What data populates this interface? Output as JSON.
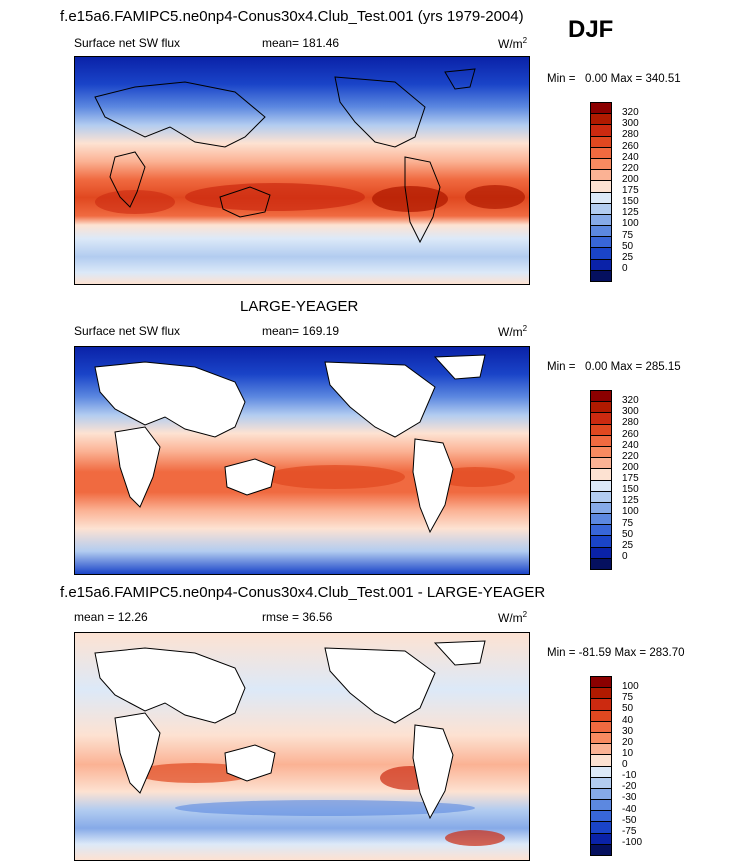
{
  "season": "DJF",
  "panels": [
    {
      "title": "f.e15a6.FAMIPC5.ne0np4-Conus30x4.Club_Test.001 (yrs 1979-2004)",
      "left_label": "Surface net SW flux",
      "mid_label": "mean= 181.46",
      "units": "W/m",
      "units_sup": "2",
      "min_label": "Min =",
      "min_value": "0.00",
      "max_label": "Max =",
      "max_value": "340.51",
      "style": "model"
    },
    {
      "title": "LARGE-YEAGER",
      "left_label": "Surface net SW flux",
      "mid_label": "mean= 169.19",
      "units": "W/m",
      "units_sup": "2",
      "min_label": "Min =",
      "min_value": "0.00",
      "max_label": "Max =",
      "max_value": "285.15",
      "style": "obs"
    },
    {
      "title": "f.e15a6.FAMIPC5.ne0np4-Conus30x4.Club_Test.001 - LARGE-YEAGER",
      "left_label": "mean =  12.26",
      "mid_label": "rmse =  36.56",
      "units": "W/m",
      "units_sup": "2",
      "min_label": "Min =",
      "min_value": "-81.59",
      "max_label": "Max =",
      "max_value": "283.70",
      "style": "diff"
    }
  ],
  "colorbars": {
    "absolute": {
      "labels": [
        "320",
        "300",
        "280",
        "260",
        "240",
        "220",
        "200",
        "175",
        "150",
        "125",
        "100",
        "75",
        "50",
        "25",
        "0"
      ],
      "colors": [
        "#8b0000",
        "#b01a00",
        "#cc2a10",
        "#e04820",
        "#f06a40",
        "#f88a60",
        "#fbb294",
        "#fde2d2",
        "#dce9f8",
        "#b2ccf0",
        "#86aae8",
        "#5c88e0",
        "#3866d8",
        "#1a44c8",
        "#0a22a8",
        "#05105f"
      ]
    },
    "difference": {
      "labels": [
        "100",
        "75",
        "50",
        "40",
        "30",
        "20",
        "10",
        "0",
        "-10",
        "-20",
        "-30",
        "-40",
        "-50",
        "-75",
        "-100"
      ],
      "colors": [
        "#8b0000",
        "#b01a00",
        "#cc2a10",
        "#e04820",
        "#f06a40",
        "#f88a60",
        "#fbb294",
        "#fde2d2",
        "#dce9f8",
        "#b2ccf0",
        "#86aae8",
        "#5c88e0",
        "#3866d8",
        "#1a44c8",
        "#0a22a8",
        "#05105f"
      ]
    }
  },
  "chart_data": [
    {
      "type": "heatmap",
      "title": "f.e15a6.FAMIPC5.ne0np4-Conus30x4.Club_Test.001 (yrs 1979-2004)",
      "variable": "Surface net SW flux",
      "units": "W/m2",
      "season": "DJF",
      "mean": 181.46,
      "min": 0.0,
      "max": 340.51,
      "levels": [
        0,
        25,
        50,
        75,
        100,
        125,
        150,
        175,
        200,
        220,
        240,
        260,
        280,
        300,
        320
      ]
    },
    {
      "type": "heatmap",
      "title": "LARGE-YEAGER",
      "variable": "Surface net SW flux",
      "units": "W/m2",
      "mean": 169.19,
      "min": 0.0,
      "max": 285.15,
      "levels": [
        0,
        25,
        50,
        75,
        100,
        125,
        150,
        175,
        200,
        220,
        240,
        260,
        280,
        300,
        320
      ]
    },
    {
      "type": "heatmap",
      "title": "f.e15a6.FAMIPC5.ne0np4-Conus30x4.Club_Test.001 - LARGE-YEAGER",
      "units": "W/m2",
      "mean": 12.26,
      "rmse": 36.56,
      "min": -81.59,
      "max": 283.7,
      "levels": [
        -100,
        -75,
        -50,
        -40,
        -30,
        -20,
        -10,
        0,
        10,
        20,
        30,
        40,
        50,
        75,
        100
      ]
    }
  ]
}
